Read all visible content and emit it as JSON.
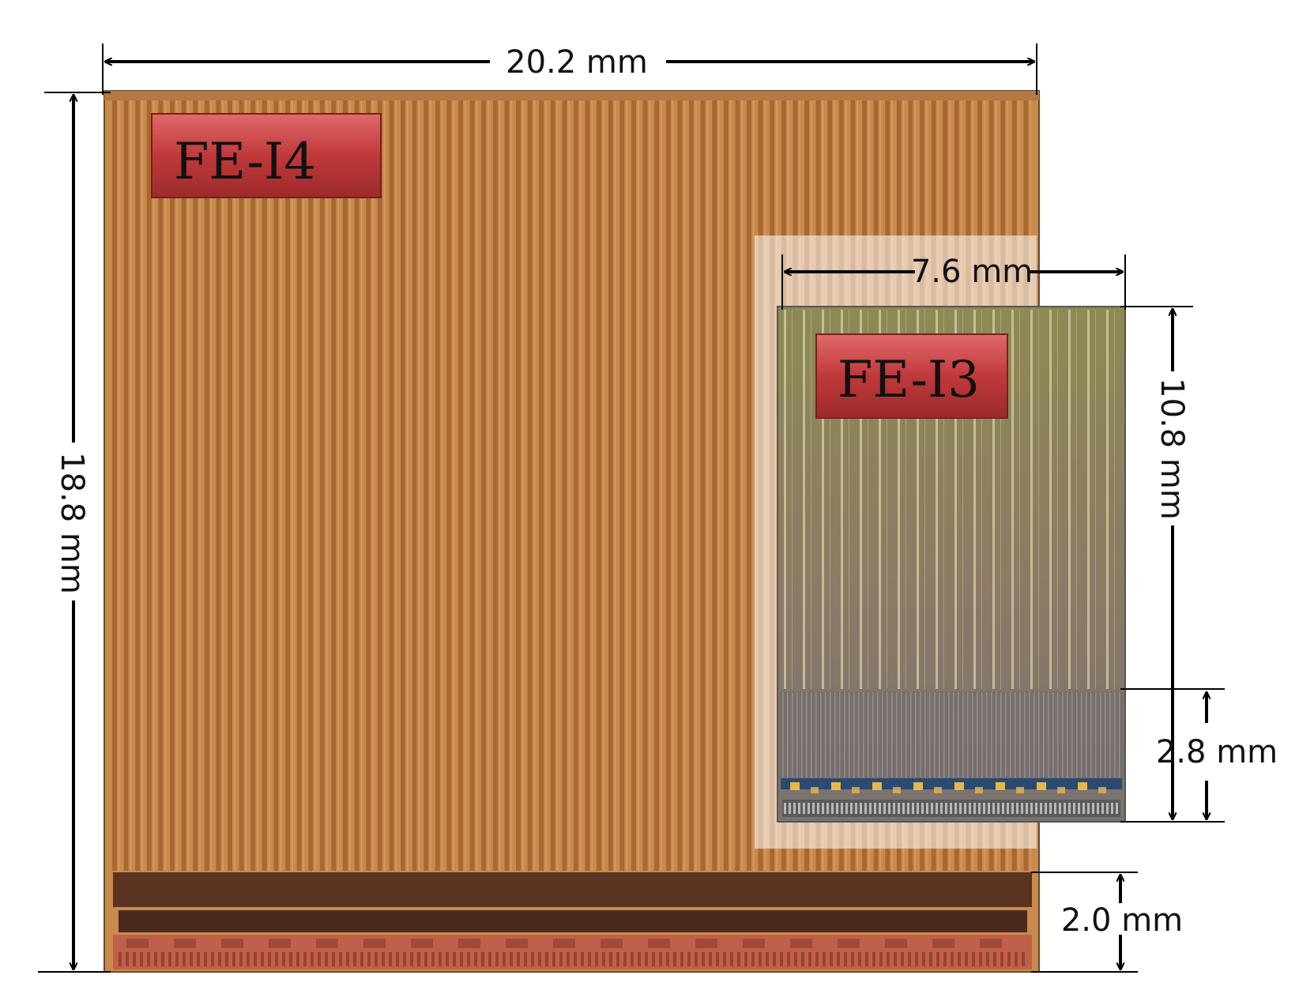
{
  "chips": {
    "fe_i4": {
      "label": "FE-I4",
      "width": "20.2 mm",
      "height": "18.8 mm",
      "periphery": "2.0 mm",
      "colors": {
        "body": "#c98a4e",
        "stripe": "#a2622c",
        "periphery": "#5a3420",
        "logic": "#c0604a",
        "badge": "#c0393a"
      }
    },
    "fe_i3": {
      "label": "FE-I3",
      "width": "7.6 mm",
      "height": "10.8 mm",
      "periphery": "2.8 mm",
      "colors": {
        "body": "#8c8456",
        "stripe": "#d8d0a8",
        "periphery": "#6f6a6a",
        "pads": "#e6b84a",
        "badge": "#c0393a"
      }
    }
  }
}
